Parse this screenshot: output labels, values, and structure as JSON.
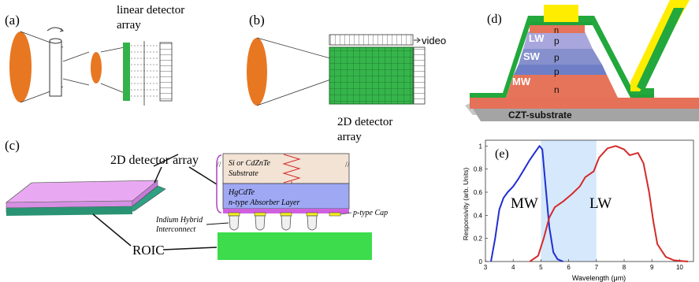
{
  "panel_a": {
    "tag": "(a)",
    "caption_line1": "linear detector",
    "caption_line2": "array"
  },
  "panel_b": {
    "tag": "(b)",
    "video_label": "video",
    "caption_line1": "2D detector",
    "caption_line2": "array"
  },
  "panel_c": {
    "tag": "(c)",
    "array_label": "2D detector array",
    "substrate_line1": "Si or CdZnTe",
    "substrate_line2": "Substrate",
    "absorber_line1": "HgCdTe",
    "absorber_line2": "n-type Absorber Layer",
    "cap_label": "p-type Cap",
    "indium_line1": "Indium Hybrid",
    "indium_line2": "Interconnect",
    "roic_label": "ROIC"
  },
  "panel_d": {
    "tag": "(d)",
    "layers": [
      {
        "name": "LW",
        "type": "p"
      },
      {
        "name": "SW",
        "type": "p"
      },
      {
        "name": "MW",
        "type": "p"
      }
    ],
    "top_contact_type": "n",
    "bottom_type": "n",
    "substrate_label": "CZT-substrate"
  },
  "panel_e": {
    "tag": "(e)",
    "mw_label": "MW",
    "lw_label": "LW"
  },
  "colors": {
    "lens_orange": "#e87722",
    "detector_green": "#33b24a",
    "roic_green": "#3ddc4c",
    "mw_blue": "#1f2fd0",
    "lw_red": "#d42a2a",
    "band_blue": "#d6e8fb"
  },
  "chart_data": {
    "type": "line",
    "xlabel": "Wavelength  (μm)",
    "ylabel": "Responsivity  (arb. Units)",
    "xlim": [
      3,
      10.5
    ],
    "ylim": [
      0,
      1.05
    ],
    "xticks": [
      "3",
      "4",
      "5",
      "6",
      "7",
      "8",
      "9",
      "10"
    ],
    "yticks": [
      "0",
      "0.2",
      "0.4",
      "0.6",
      "0.8",
      "1"
    ],
    "shaded_band": [
      5,
      7
    ],
    "series": [
      {
        "name": "MW",
        "color": "#1f2fd0",
        "x": [
          3.2,
          3.35,
          3.5,
          3.65,
          3.8,
          4.0,
          4.2,
          4.4,
          4.6,
          4.8,
          4.95,
          5.05,
          5.15,
          5.3,
          5.45,
          5.6,
          5.8
        ],
        "y": [
          0.0,
          0.2,
          0.45,
          0.55,
          0.6,
          0.65,
          0.72,
          0.8,
          0.88,
          0.95,
          1.0,
          0.97,
          0.7,
          0.3,
          0.08,
          0.02,
          0.0
        ]
      },
      {
        "name": "LW",
        "color": "#d42a2a",
        "x": [
          4.6,
          4.9,
          5.1,
          5.3,
          5.5,
          5.8,
          6.1,
          6.4,
          6.6,
          6.9,
          7.1,
          7.4,
          7.7,
          8.0,
          8.2,
          8.5,
          8.7,
          8.9,
          9.05,
          9.2,
          9.5,
          9.8,
          10.3
        ],
        "y": [
          0.0,
          0.05,
          0.2,
          0.38,
          0.47,
          0.52,
          0.58,
          0.65,
          0.73,
          0.78,
          0.9,
          0.98,
          1.0,
          0.97,
          0.92,
          0.94,
          0.85,
          0.6,
          0.35,
          0.15,
          0.04,
          0.01,
          0.0
        ]
      }
    ]
  }
}
